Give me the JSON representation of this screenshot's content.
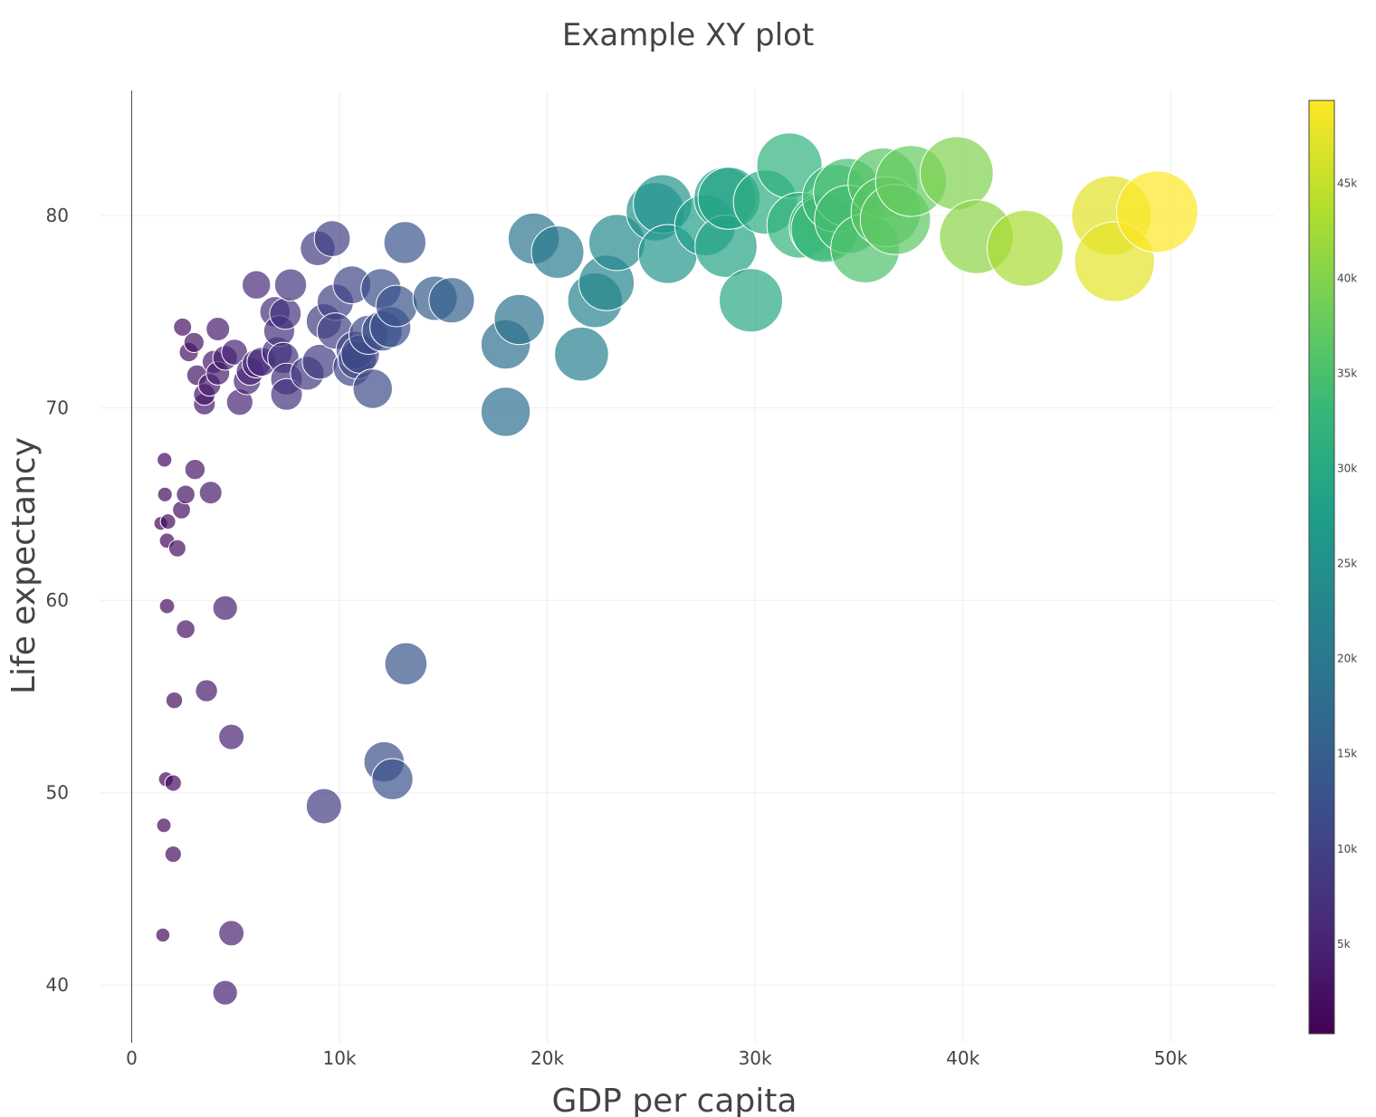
{
  "chart_data": {
    "type": "scatter",
    "title": "Example XY plot",
    "xlabel": "GDP per capita",
    "ylabel": "Life expectancy",
    "xlim": [
      -1500,
      55000
    ],
    "ylim": [
      37,
      86.5
    ],
    "xticks": [
      0,
      10000,
      20000,
      30000,
      40000,
      50000
    ],
    "xtick_labels": [
      "0",
      "10k",
      "20k",
      "30k",
      "40k",
      "50k"
    ],
    "yticks": [
      40,
      50,
      60,
      70,
      80
    ],
    "ytick_labels": [
      "40",
      "50",
      "60",
      "70",
      "80"
    ],
    "grid": true,
    "colorbar": {
      "colorscale": "viridis",
      "cmin": 277,
      "cmax": 49357,
      "ticks": [
        5000,
        10000,
        15000,
        20000,
        25000,
        30000,
        35000,
        40000,
        45000
      ],
      "tick_labels": [
        "5k",
        "10k",
        "15k",
        "20k",
        "25k",
        "30k",
        "35k",
        "40k",
        "45k"
      ]
    },
    "note_marker": "marker color and size both encode GDP per capita",
    "points": [
      {
        "x": 1400,
        "y": 64.0
      },
      {
        "x": 1500,
        "y": 42.6
      },
      {
        "x": 1550,
        "y": 48.3
      },
      {
        "x": 1580,
        "y": 67.3
      },
      {
        "x": 1600,
        "y": 65.5
      },
      {
        "x": 1650,
        "y": 50.7
      },
      {
        "x": 1700,
        "y": 59.7
      },
      {
        "x": 1700,
        "y": 63.1
      },
      {
        "x": 1750,
        "y": 64.1
      },
      {
        "x": 2000,
        "y": 46.8
      },
      {
        "x": 2000,
        "y": 50.5
      },
      {
        "x": 2050,
        "y": 54.8
      },
      {
        "x": 2200,
        "y": 62.7
      },
      {
        "x": 2400,
        "y": 64.7
      },
      {
        "x": 2450,
        "y": 74.2
      },
      {
        "x": 2600,
        "y": 65.5
      },
      {
        "x": 2600,
        "y": 58.5
      },
      {
        "x": 2750,
        "y": 72.9
      },
      {
        "x": 3000,
        "y": 73.4
      },
      {
        "x": 3050,
        "y": 66.8
      },
      {
        "x": 3150,
        "y": 71.7
      },
      {
        "x": 3500,
        "y": 70.2
      },
      {
        "x": 3500,
        "y": 70.7
      },
      {
        "x": 3600,
        "y": 55.3
      },
      {
        "x": 3750,
        "y": 71.2
      },
      {
        "x": 3800,
        "y": 65.6
      },
      {
        "x": 3950,
        "y": 72.4
      },
      {
        "x": 4150,
        "y": 74.1
      },
      {
        "x": 4150,
        "y": 71.8
      },
      {
        "x": 4500,
        "y": 72.6
      },
      {
        "x": 4500,
        "y": 59.6
      },
      {
        "x": 4500,
        "y": 39.6
      },
      {
        "x": 4800,
        "y": 52.9
      },
      {
        "x": 4800,
        "y": 42.7
      },
      {
        "x": 4950,
        "y": 72.9
      },
      {
        "x": 5200,
        "y": 70.3
      },
      {
        "x": 5550,
        "y": 71.4
      },
      {
        "x": 5700,
        "y": 71.9
      },
      {
        "x": 6000,
        "y": 72.3
      },
      {
        "x": 6250,
        "y": 72.4
      },
      {
        "x": 6000,
        "y": 76.4
      },
      {
        "x": 6900,
        "y": 75.0
      },
      {
        "x": 7000,
        "y": 72.9
      },
      {
        "x": 7100,
        "y": 74.0
      },
      {
        "x": 7300,
        "y": 72.6
      },
      {
        "x": 7400,
        "y": 74.9
      },
      {
        "x": 7450,
        "y": 71.5
      },
      {
        "x": 7450,
        "y": 70.7
      },
      {
        "x": 7650,
        "y": 76.4
      },
      {
        "x": 8450,
        "y": 71.8
      },
      {
        "x": 8950,
        "y": 78.3
      },
      {
        "x": 9050,
        "y": 72.4
      },
      {
        "x": 9250,
        "y": 74.5
      },
      {
        "x": 9250,
        "y": 49.3
      },
      {
        "x": 9650,
        "y": 78.8
      },
      {
        "x": 9800,
        "y": 75.5
      },
      {
        "x": 9800,
        "y": 74.0
      },
      {
        "x": 10600,
        "y": 72.1
      },
      {
        "x": 10600,
        "y": 76.4
      },
      {
        "x": 10750,
        "y": 73.0
      },
      {
        "x": 10850,
        "y": 72.5
      },
      {
        "x": 11000,
        "y": 72.8
      },
      {
        "x": 11400,
        "y": 73.8
      },
      {
        "x": 11600,
        "y": 71.0
      },
      {
        "x": 12000,
        "y": 76.2
      },
      {
        "x": 12050,
        "y": 74.0
      },
      {
        "x": 12150,
        "y": 51.6
      },
      {
        "x": 12450,
        "y": 74.2
      },
      {
        "x": 12550,
        "y": 50.7
      },
      {
        "x": 12750,
        "y": 75.3
      },
      {
        "x": 13150,
        "y": 78.6
      },
      {
        "x": 13200,
        "y": 56.7
      },
      {
        "x": 14600,
        "y": 75.7
      },
      {
        "x": 15400,
        "y": 75.6
      },
      {
        "x": 18000,
        "y": 69.8
      },
      {
        "x": 18000,
        "y": 73.3
      },
      {
        "x": 18650,
        "y": 74.6
      },
      {
        "x": 19350,
        "y": 78.8
      },
      {
        "x": 20500,
        "y": 78.1
      },
      {
        "x": 21650,
        "y": 72.8
      },
      {
        "x": 22300,
        "y": 75.6
      },
      {
        "x": 22850,
        "y": 76.5
      },
      {
        "x": 23350,
        "y": 78.6
      },
      {
        "x": 25200,
        "y": 80.2
      },
      {
        "x": 25550,
        "y": 80.6
      },
      {
        "x": 25800,
        "y": 78.0
      },
      {
        "x": 27600,
        "y": 79.5
      },
      {
        "x": 28550,
        "y": 80.9
      },
      {
        "x": 28750,
        "y": 80.9
      },
      {
        "x": 28600,
        "y": 78.4
      },
      {
        "x": 29800,
        "y": 75.6
      },
      {
        "x": 30500,
        "y": 80.7
      },
      {
        "x": 31650,
        "y": 82.6
      },
      {
        "x": 32150,
        "y": 79.5
      },
      {
        "x": 33250,
        "y": 79.4
      },
      {
        "x": 33350,
        "y": 79.3
      },
      {
        "x": 33900,
        "y": 80.9
      },
      {
        "x": 34450,
        "y": 81.2
      },
      {
        "x": 34500,
        "y": 79.8
      },
      {
        "x": 35300,
        "y": 78.3
      },
      {
        "x": 36150,
        "y": 81.7
      },
      {
        "x": 36300,
        "y": 80.2
      },
      {
        "x": 36750,
        "y": 79.8
      },
      {
        "x": 37500,
        "y": 81.8
      },
      {
        "x": 39700,
        "y": 82.2
      },
      {
        "x": 40650,
        "y": 78.9
      },
      {
        "x": 43000,
        "y": 78.3
      },
      {
        "x": 47150,
        "y": 80.0
      },
      {
        "x": 47300,
        "y": 77.6
      },
      {
        "x": 49350,
        "y": 80.2
      }
    ]
  }
}
